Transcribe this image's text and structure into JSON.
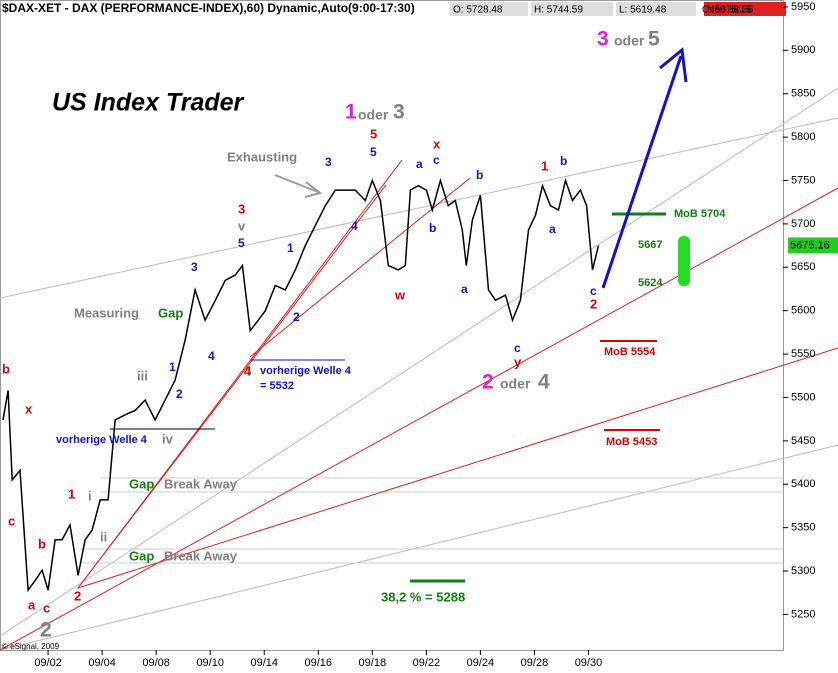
{
  "chart_data": {
    "type": "line",
    "title": "$DAX-XET - DAX (PERFORMANCE-INDEX),60) Dynamic,Auto(9:00-17:30)",
    "ohlc_labels": [
      "O: 5728.48",
      "H: 5744.59",
      "L: 5619.48",
      "C: 5675.16"
    ],
    "net_label": "Net: 38.36",
    "last_price_label": "5675.16",
    "watermark": "US Index Trader",
    "credit": "© eSignal, 2009",
    "color": "#000000",
    "x": [
      -0.67,
      -0.48,
      -0.33,
      -0.04,
      0.26,
      0.52,
      0.78,
      1.0,
      1.26,
      1.52,
      1.81,
      2.11,
      2.37,
      2.63,
      2.93,
      3.22,
      3.48,
      3.85,
      4.22,
      4.59,
      4.96,
      5.33,
      5.7,
      6.07,
      6.44,
      6.81,
      7.19,
      7.56,
      7.93,
      8.19,
      8.48,
      8.78,
      9.04,
      9.41,
      9.78,
      10.15,
      10.52,
      10.89,
      11.26,
      11.63,
      12.0,
      12.37,
      12.74,
      13.0,
      13.3,
      13.59,
      13.96,
      14.22,
      14.41,
      14.7,
      15.0,
      15.22,
      15.52,
      15.81,
      16.07,
      16.33,
      16.48,
      16.7,
      17.0,
      17.3,
      17.56,
      17.93,
      18.19,
      18.48,
      18.78,
      19.04,
      19.3,
      19.59,
      19.89,
      20.15,
      20.41,
      20.7,
      20.93,
      21.15,
      21.37
    ],
    "values": [
      5474,
      5508,
      5405,
      5416,
      5278,
      5289,
      5301,
      5278,
      5336,
      5336,
      5353,
      5295,
      5336,
      5347,
      5382,
      5382,
      5474,
      5480,
      5485,
      5497,
      5474,
      5497,
      5520,
      5566,
      5624,
      5589,
      5612,
      5635,
      5641,
      5652,
      5577,
      5589,
      5600,
      5629,
      5624,
      5647,
      5675,
      5698,
      5721,
      5739,
      5739,
      5739,
      5727,
      5750,
      5727,
      5652,
      5647,
      5652,
      5739,
      5744,
      5739,
      5716,
      5750,
      5721,
      5727,
      5693,
      5652,
      5704,
      5733,
      5624,
      5612,
      5618,
      5589,
      5612,
      5693,
      5710,
      5744,
      5721,
      5716,
      5750,
      5727,
      5739,
      5721,
      5647,
      5675.16
    ],
    "xlim": [
      -0.78,
      28.2
    ],
    "ylim": [
      5209,
      5958
    ],
    "yticks": [
      5250,
      5300,
      5350,
      5400,
      5450,
      5500,
      5550,
      5600,
      5650,
      5700,
      5750,
      5800,
      5850,
      5900,
      5950
    ],
    "xticks": [
      {
        "value": 1,
        "label": "09/02"
      },
      {
        "value": 3,
        "label": "09/04"
      },
      {
        "value": 5,
        "label": "09/08"
      },
      {
        "value": 7,
        "label": "09/10"
      },
      {
        "value": 9,
        "label": "09/14"
      },
      {
        "value": 11,
        "label": "09/16"
      },
      {
        "value": 13,
        "label": "09/18"
      },
      {
        "value": 15,
        "label": "09/22"
      },
      {
        "value": 17,
        "label": "09/24"
      },
      {
        "value": 19,
        "label": "09/28"
      },
      {
        "value": 21,
        "label": "09/30"
      }
    ],
    "annotations": [
      "3",
      "oder",
      "5",
      "1",
      "oder",
      "3",
      "5",
      "5",
      "3",
      "Exhausting",
      "x",
      "a",
      "c",
      "1",
      "b",
      "b",
      "3",
      "v",
      "5",
      "1",
      "2",
      "4",
      "3",
      "4",
      "2",
      "1",
      "iii",
      "Measuring",
      "Gap",
      "4",
      "vorherige  Welle 4",
      "= 5532",
      "w",
      "b",
      "a",
      "a",
      "c",
      "y",
      "2",
      "oder",
      "4",
      "c",
      "2",
      "b",
      "x",
      "vorherige  Welle 4",
      "iv",
      "Gap",
      "Break Away",
      "1",
      "i",
      "ii",
      "c",
      "b",
      "Gap",
      "Break Away",
      "a",
      "c",
      "2",
      "2",
      "38,2 % = 5288",
      "MoB 5704",
      "5667",
      "5624",
      "MoB 5554",
      "MoB 5453"
    ]
  }
}
